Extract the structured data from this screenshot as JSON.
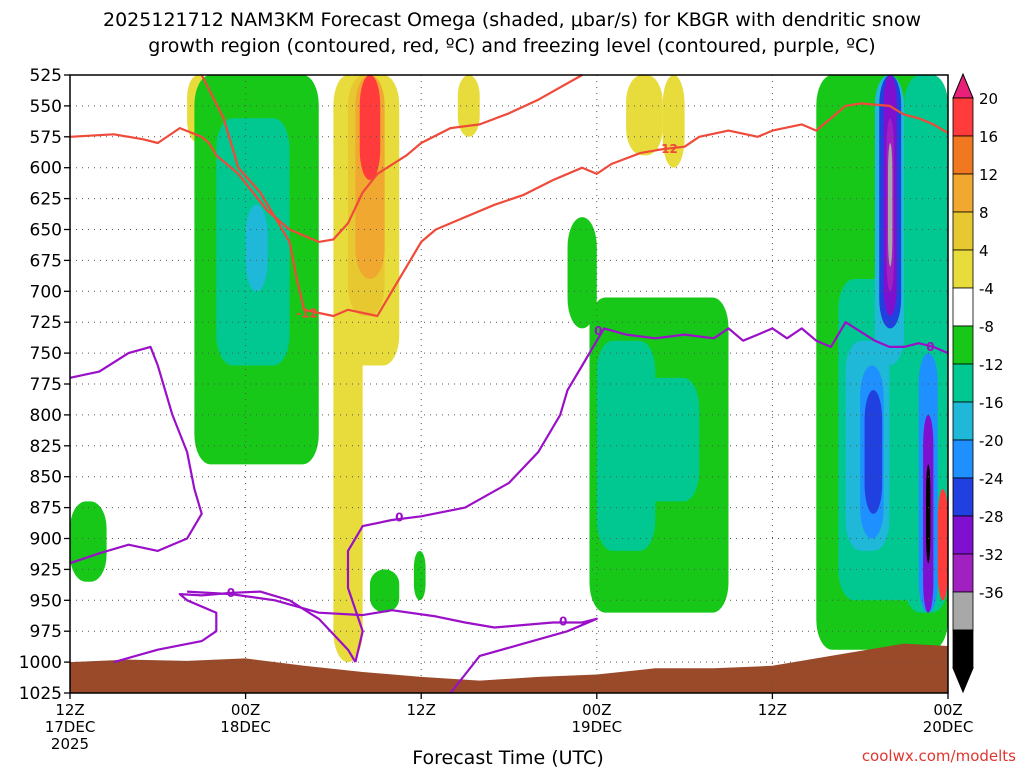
{
  "chart_data": {
    "type": "heatmap",
    "title_line1": "2025121712 NAM3KM Forecast Omega (shaded, μbar/s) for KBGR with dendritic snow",
    "title_line2": "growth region (contoured, red, ºC) and freezing level (contoured, purple, ºC)",
    "xlabel": "Forecast Time (UTC)",
    "credit": "coolwx.com/modelts",
    "yticks": [
      "525",
      "550",
      "575",
      "600",
      "625",
      "650",
      "675",
      "700",
      "725",
      "750",
      "775",
      "800",
      "825",
      "850",
      "875",
      "900",
      "925",
      "950",
      "975",
      "1000",
      "1025"
    ],
    "y_values": [
      525,
      550,
      575,
      600,
      625,
      650,
      675,
      700,
      725,
      750,
      775,
      800,
      825,
      850,
      875,
      900,
      925,
      950,
      975,
      1000,
      1025
    ],
    "ylim": [
      525,
      1025
    ],
    "xlim_hours": [
      0,
      60
    ],
    "xticks": [
      {
        "hour": 0,
        "lines": [
          "12Z",
          "17DEC",
          "2025"
        ]
      },
      {
        "hour": 12,
        "lines": [
          "00Z",
          "18DEC"
        ]
      },
      {
        "hour": 24,
        "lines": [
          "12Z"
        ]
      },
      {
        "hour": 36,
        "lines": [
          "00Z",
          "19DEC"
        ]
      },
      {
        "hour": 48,
        "lines": [
          "12Z"
        ]
      },
      {
        "hour": 60,
        "lines": [
          "00Z",
          "20DEC"
        ]
      }
    ],
    "colorbar": {
      "labels": [
        "20",
        "16",
        "12",
        "8",
        "4",
        "-4",
        "-8",
        "-12",
        "-16",
        "-20",
        "-24",
        "-28",
        "-32",
        "-36"
      ],
      "colors": [
        "#ff3b3b",
        "#f07820",
        "#f0a830",
        "#e8c830",
        "#e8dc3c",
        "#ffffff",
        "#18c818",
        "#00c890",
        "#20b8d8",
        "#1e90ff",
        "#2040e0",
        "#8010d0",
        "#a020c0",
        "#a8a8a8",
        "#000000"
      ],
      "top_arrow_color": "#e8207a",
      "bottom_arrow_color": "#000000"
    },
    "contour_labels": {
      "dgz": "-12",
      "freezing": "0"
    },
    "colors": {
      "dgz_line": "#ef4a3a",
      "freezing_line": "#9a10c8",
      "terrain": "#9a4a28"
    },
    "dgz_contour_1": [
      [
        0,
        575
      ],
      [
        3,
        573
      ],
      [
        5,
        577
      ],
      [
        6,
        580
      ],
      [
        7.5,
        568
      ],
      [
        9,
        575
      ],
      [
        9.5,
        580
      ],
      [
        10,
        590
      ],
      [
        11.5,
        605
      ],
      [
        12.5,
        620
      ],
      [
        13.5,
        635
      ],
      [
        15,
        650
      ],
      [
        17,
        660
      ],
      [
        18,
        658
      ],
      [
        19,
        645
      ],
      [
        20,
        620
      ],
      [
        21,
        605
      ],
      [
        23,
        590
      ],
      [
        24,
        580
      ],
      [
        26,
        568
      ],
      [
        28,
        565
      ],
      [
        30,
        556
      ],
      [
        32,
        545
      ],
      [
        35,
        525
      ]
    ],
    "dgz_contour_2": [
      [
        9,
        525
      ],
      [
        10.5,
        560
      ],
      [
        11,
        580
      ],
      [
        11.5,
        600
      ],
      [
        13,
        620
      ],
      [
        14,
        640
      ],
      [
        15,
        660
      ],
      [
        15.5,
        690
      ],
      [
        16,
        715
      ],
      [
        18,
        720
      ],
      [
        19,
        715
      ],
      [
        21,
        720
      ],
      [
        22,
        700
      ],
      [
        23,
        680
      ],
      [
        24,
        660
      ],
      [
        25,
        650
      ],
      [
        27,
        640
      ],
      [
        29,
        630
      ],
      [
        31,
        622
      ],
      [
        33,
        610
      ],
      [
        35,
        600
      ],
      [
        36,
        605
      ],
      [
        37,
        597
      ],
      [
        39,
        588
      ],
      [
        40.5,
        585
      ],
      [
        42,
        583
      ],
      [
        43,
        575
      ],
      [
        45,
        570
      ],
      [
        47,
        575
      ],
      [
        48,
        570
      ],
      [
        50,
        565
      ],
      [
        51,
        570
      ],
      [
        52,
        560
      ],
      [
        53,
        550
      ],
      [
        54,
        548
      ],
      [
        56,
        550
      ],
      [
        57,
        557
      ],
      [
        58,
        560
      ],
      [
        59,
        565
      ],
      [
        60,
        572
      ]
    ],
    "freezing_contour_1": [
      [
        0,
        770
      ],
      [
        2,
        765
      ],
      [
        4,
        750
      ],
      [
        5.5,
        745
      ],
      [
        6,
        760
      ],
      [
        7,
        800
      ],
      [
        8,
        830
      ],
      [
        8.5,
        860
      ],
      [
        9,
        880
      ],
      [
        8,
        900
      ],
      [
        6,
        910
      ],
      [
        4,
        905
      ],
      [
        2,
        912
      ],
      [
        0,
        920
      ]
    ],
    "freezing_contour_2": [
      [
        3,
        1000
      ],
      [
        6,
        990
      ],
      [
        9,
        983
      ],
      [
        10,
        975
      ],
      [
        10,
        960
      ],
      [
        8,
        950
      ],
      [
        7.5,
        945
      ],
      [
        9,
        946
      ],
      [
        11,
        944
      ],
      [
        13,
        943
      ],
      [
        15,
        950
      ],
      [
        17,
        965
      ],
      [
        19,
        990
      ],
      [
        19.5,
        1000
      ]
    ],
    "freezing_contour_3": [
      [
        19.5,
        1000
      ],
      [
        20,
        975
      ],
      [
        19,
        940
      ],
      [
        19,
        910
      ],
      [
        20,
        890
      ],
      [
        22,
        885
      ],
      [
        24,
        882
      ],
      [
        27,
        875
      ],
      [
        30,
        855
      ],
      [
        32,
        830
      ],
      [
        33.5,
        800
      ],
      [
        34,
        780
      ],
      [
        35,
        760
      ],
      [
        36,
        740
      ],
      [
        36.5,
        730
      ],
      [
        38,
        735
      ],
      [
        40,
        738
      ],
      [
        42,
        735
      ],
      [
        44,
        738
      ],
      [
        45,
        730
      ],
      [
        46,
        740
      ],
      [
        47,
        735
      ],
      [
        48,
        730
      ],
      [
        49,
        738
      ],
      [
        50,
        730
      ],
      [
        51,
        740
      ],
      [
        52,
        745
      ],
      [
        53,
        725
      ],
      [
        55,
        740
      ],
      [
        56,
        745
      ],
      [
        57,
        745
      ],
      [
        58,
        742
      ],
      [
        59,
        745
      ],
      [
        60,
        750
      ]
    ],
    "freezing_contour_4": [
      [
        8,
        943
      ],
      [
        11,
        945
      ],
      [
        14,
        950
      ],
      [
        17,
        960
      ],
      [
        20,
        962
      ],
      [
        22,
        958
      ],
      [
        25,
        963
      ],
      [
        27,
        968
      ],
      [
        29,
        972
      ],
      [
        31,
        970
      ],
      [
        33,
        968
      ],
      [
        35,
        968
      ],
      [
        36,
        965
      ],
      [
        34,
        975
      ],
      [
        31,
        985
      ],
      [
        28,
        995
      ],
      [
        27,
        1010
      ],
      [
        26,
        1025
      ]
    ],
    "terrain": [
      [
        0,
        1000
      ],
      [
        4,
        998
      ],
      [
        8,
        999
      ],
      [
        12,
        997
      ],
      [
        16,
        1003
      ],
      [
        20,
        1008
      ],
      [
        24,
        1012
      ],
      [
        28,
        1015
      ],
      [
        32,
        1012
      ],
      [
        36,
        1010
      ],
      [
        40,
        1005
      ],
      [
        44,
        1005
      ],
      [
        48,
        1003
      ],
      [
        52,
        995
      ],
      [
        55,
        989
      ],
      [
        57,
        985
      ],
      [
        60,
        987
      ]
    ]
  }
}
